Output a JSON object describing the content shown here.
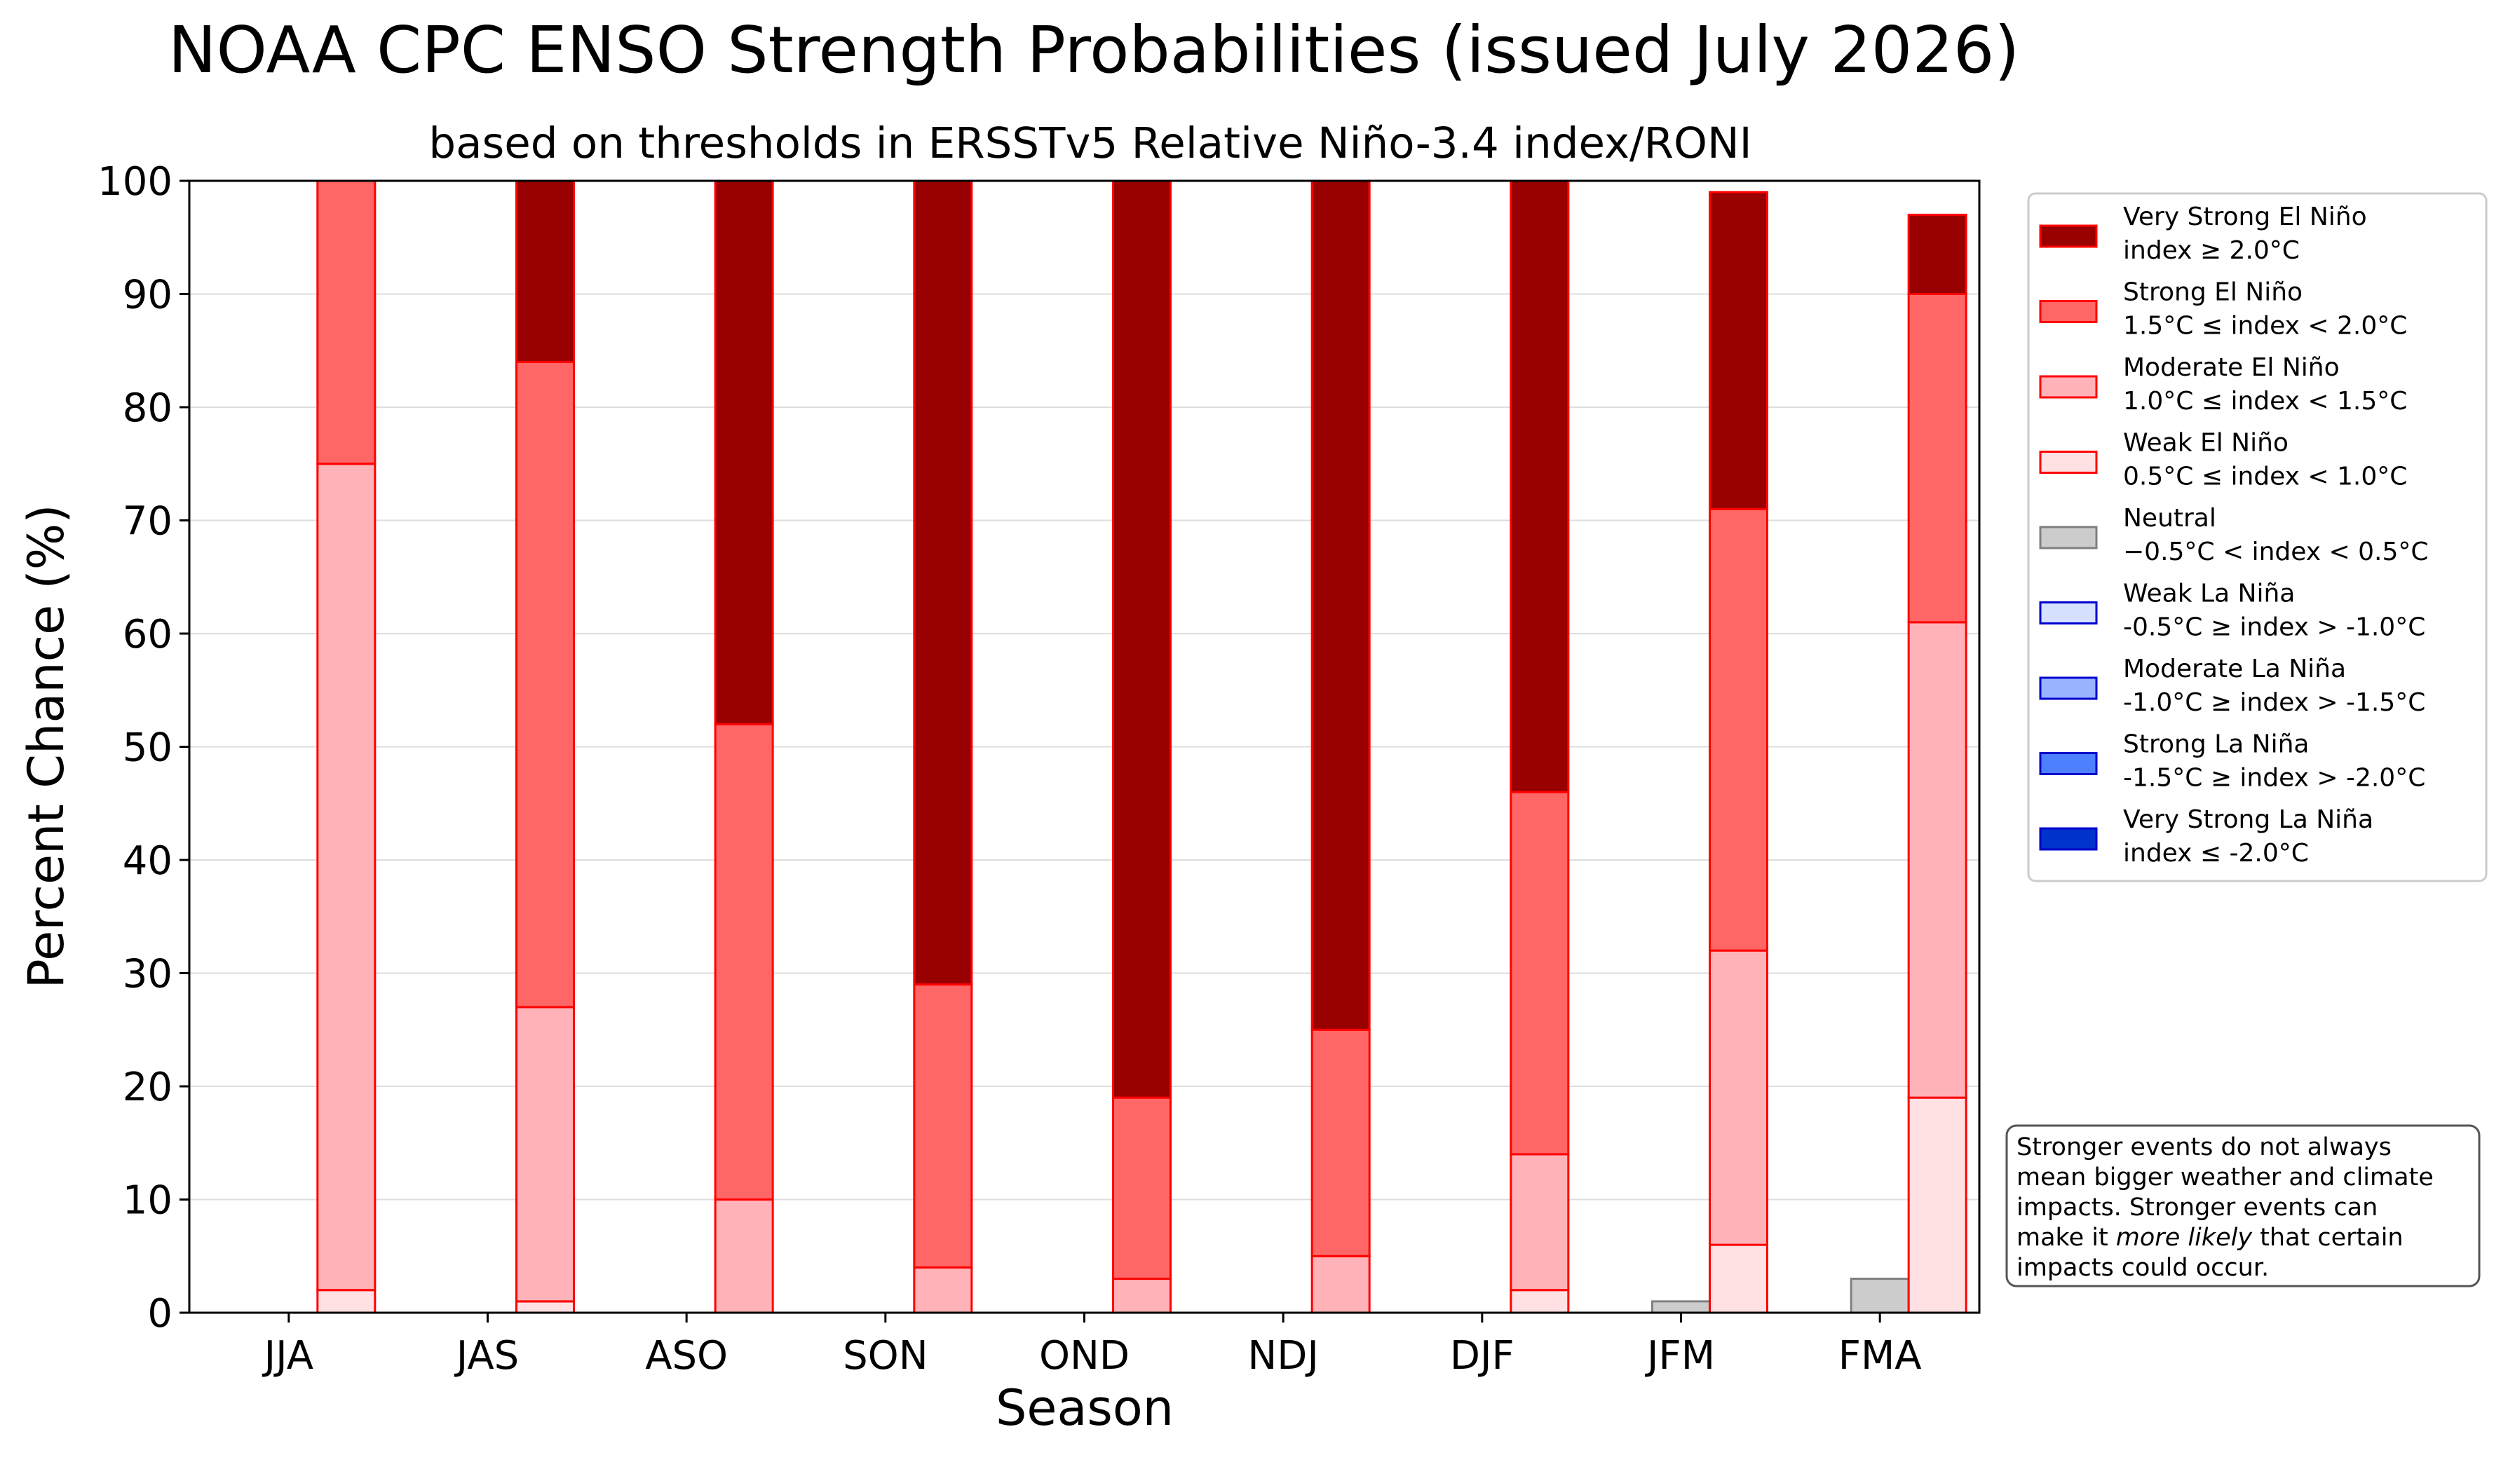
{
  "chart_data": {
    "type": "bar",
    "title": "NOAA CPC ENSO Strength Probabilities (issued July 2026)",
    "subtitle": "based on thresholds in ERSSTv5 Relative Niño-3.4 index/RONI",
    "xlabel": "Season",
    "ylabel": "Percent Chance (%)",
    "ylim": [
      0,
      100
    ],
    "yticks": [
      "0",
      "10",
      "20",
      "30",
      "40",
      "50",
      "60",
      "70",
      "80",
      "90",
      "100"
    ],
    "grid": "horizontal",
    "legend_position": "right",
    "categories": [
      "JJA",
      "JAS",
      "ASO",
      "SON",
      "OND",
      "NDJ",
      "DJF",
      "JFM",
      "FMA"
    ],
    "la_nina_series": [
      {
        "name": "Very Strong La Niña",
        "threshold": "index ≤ -2.0°C",
        "color": "#0033cc",
        "edge": "#0000cc",
        "values": [
          0,
          0,
          0,
          0,
          0,
          0,
          0,
          0,
          0
        ]
      },
      {
        "name": "Strong La Niña",
        "threshold": "-1.5°C ≥ index > -2.0°C",
        "color": "#4d80ff",
        "edge": "#0000cc",
        "values": [
          0,
          0,
          0,
          0,
          0,
          0,
          0,
          0,
          0
        ]
      },
      {
        "name": "Moderate La Niña",
        "threshold": "-1.0°C ≥ index > -1.5°C",
        "color": "#99b3ff",
        "edge": "#0000cc",
        "values": [
          0,
          0,
          0,
          0,
          0,
          0,
          0,
          0,
          0
        ]
      },
      {
        "name": "Weak La Niña",
        "threshold": "-0.5°C ≥ index > -1.0°C",
        "color": "#d6e0ff",
        "edge": "#0000cc",
        "values": [
          0,
          0,
          0,
          0,
          0,
          0,
          0,
          0,
          0
        ]
      }
    ],
    "neutral_series": {
      "name": "Neutral",
      "threshold": "−0.5°C < index < 0.5°C",
      "color": "#cccccc",
      "edge": "#808080",
      "values": [
        0,
        0,
        0,
        0,
        0,
        0,
        0,
        1,
        3
      ]
    },
    "el_nino_series": [
      {
        "name": "Weak El Niño",
        "threshold": "0.5°C ≤ index < 1.0°C",
        "color": "#ffe0e3",
        "edge": "#ff0000",
        "values": [
          2,
          1,
          0,
          0,
          0,
          0,
          2,
          6,
          19
        ]
      },
      {
        "name": "Moderate El Niño",
        "threshold": "1.0°C ≤ index < 1.5°C",
        "color": "#ffb3b8",
        "edge": "#ff0000",
        "values": [
          73,
          26,
          10,
          4,
          3,
          5,
          12,
          26,
          42
        ]
      },
      {
        "name": "Strong El Niño",
        "threshold": "1.5°C ≤ index < 2.0°C",
        "color": "#ff6666",
        "edge": "#ff0000",
        "values": [
          25,
          57,
          42,
          25,
          16,
          20,
          32,
          39,
          29
        ]
      },
      {
        "name": "Very Strong El Niño",
        "threshold": "index ≥ 2.0°C",
        "color": "#990000",
        "edge": "#ff0000",
        "values": [
          0,
          16,
          48,
          71,
          81,
          75,
          54,
          28,
          7
        ]
      }
    ],
    "legend_order": [
      "Very Strong El Niño",
      "Strong El Niño",
      "Moderate El Niño",
      "Weak El Niño",
      "Neutral",
      "Weak La Niña",
      "Moderate La Niña",
      "Strong La Niña",
      "Very Strong La Niña"
    ],
    "note": {
      "lines": [
        "Stronger events do not always",
        "mean bigger weather and climate",
        "impacts. Stronger events can",
        "make it ",
        "more likely",
        " that certain",
        "impacts could occur."
      ]
    }
  }
}
